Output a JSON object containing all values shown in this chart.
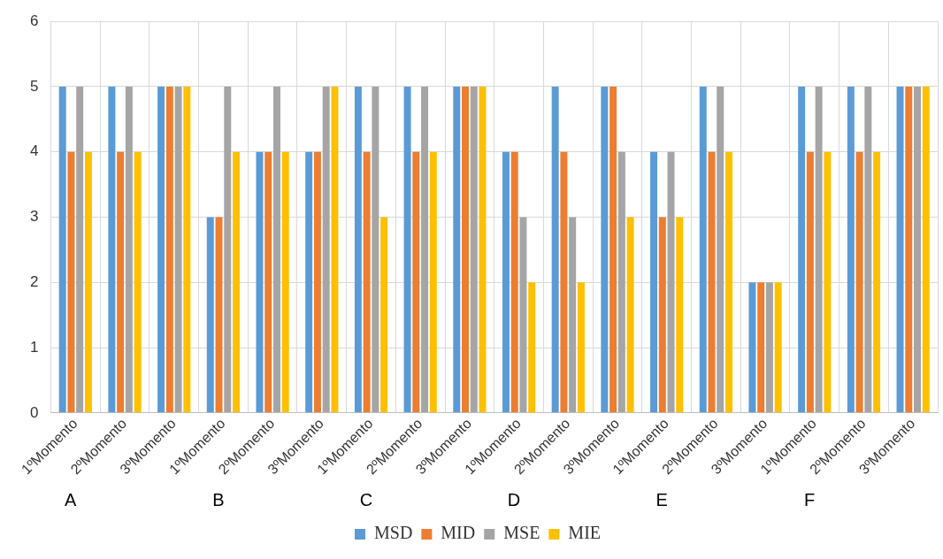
{
  "chart_data": {
    "type": "bar",
    "categories": [
      "1ºMomento",
      "2ºMomento",
      "3ºMomento",
      "1ºMomento",
      "2ºMomento",
      "3ºMomento",
      "1ºMomento",
      "2ºMomento",
      "3ºMomento",
      "1ºMomento",
      "2ºMomento",
      "3ºMomento",
      "1ºMomento",
      "2ºMomento",
      "3ºMomento",
      "1ºMomento",
      "2ºMomento",
      "3ºMomento"
    ],
    "series": [
      {
        "name": "MSD",
        "color": "#5b9bd5",
        "values": [
          5,
          5,
          5,
          3,
          4,
          4,
          5,
          5,
          5,
          4,
          5,
          5,
          4,
          5,
          2,
          5,
          5,
          5
        ]
      },
      {
        "name": "MID",
        "color": "#ed7d31",
        "values": [
          4,
          4,
          5,
          3,
          4,
          4,
          4,
          4,
          5,
          4,
          4,
          5,
          3,
          4,
          2,
          4,
          4,
          5
        ]
      },
      {
        "name": "MSE",
        "color": "#a5a5a5",
        "values": [
          5,
          5,
          5,
          5,
          5,
          5,
          5,
          5,
          5,
          3,
          3,
          4,
          4,
          5,
          2,
          5,
          5,
          5
        ]
      },
      {
        "name": "MIE",
        "color": "#ffc000",
        "values": [
          4,
          4,
          5,
          4,
          4,
          5,
          3,
          4,
          5,
          2,
          2,
          3,
          3,
          4,
          2,
          4,
          4,
          5
        ]
      }
    ],
    "ylim": [
      0,
      6
    ],
    "yticks": [
      0,
      1,
      2,
      3,
      4,
      5,
      6
    ],
    "grid": true,
    "legend": "bottom",
    "annotations": [
      "A",
      "B",
      "C",
      "D",
      "E",
      "F"
    ]
  }
}
